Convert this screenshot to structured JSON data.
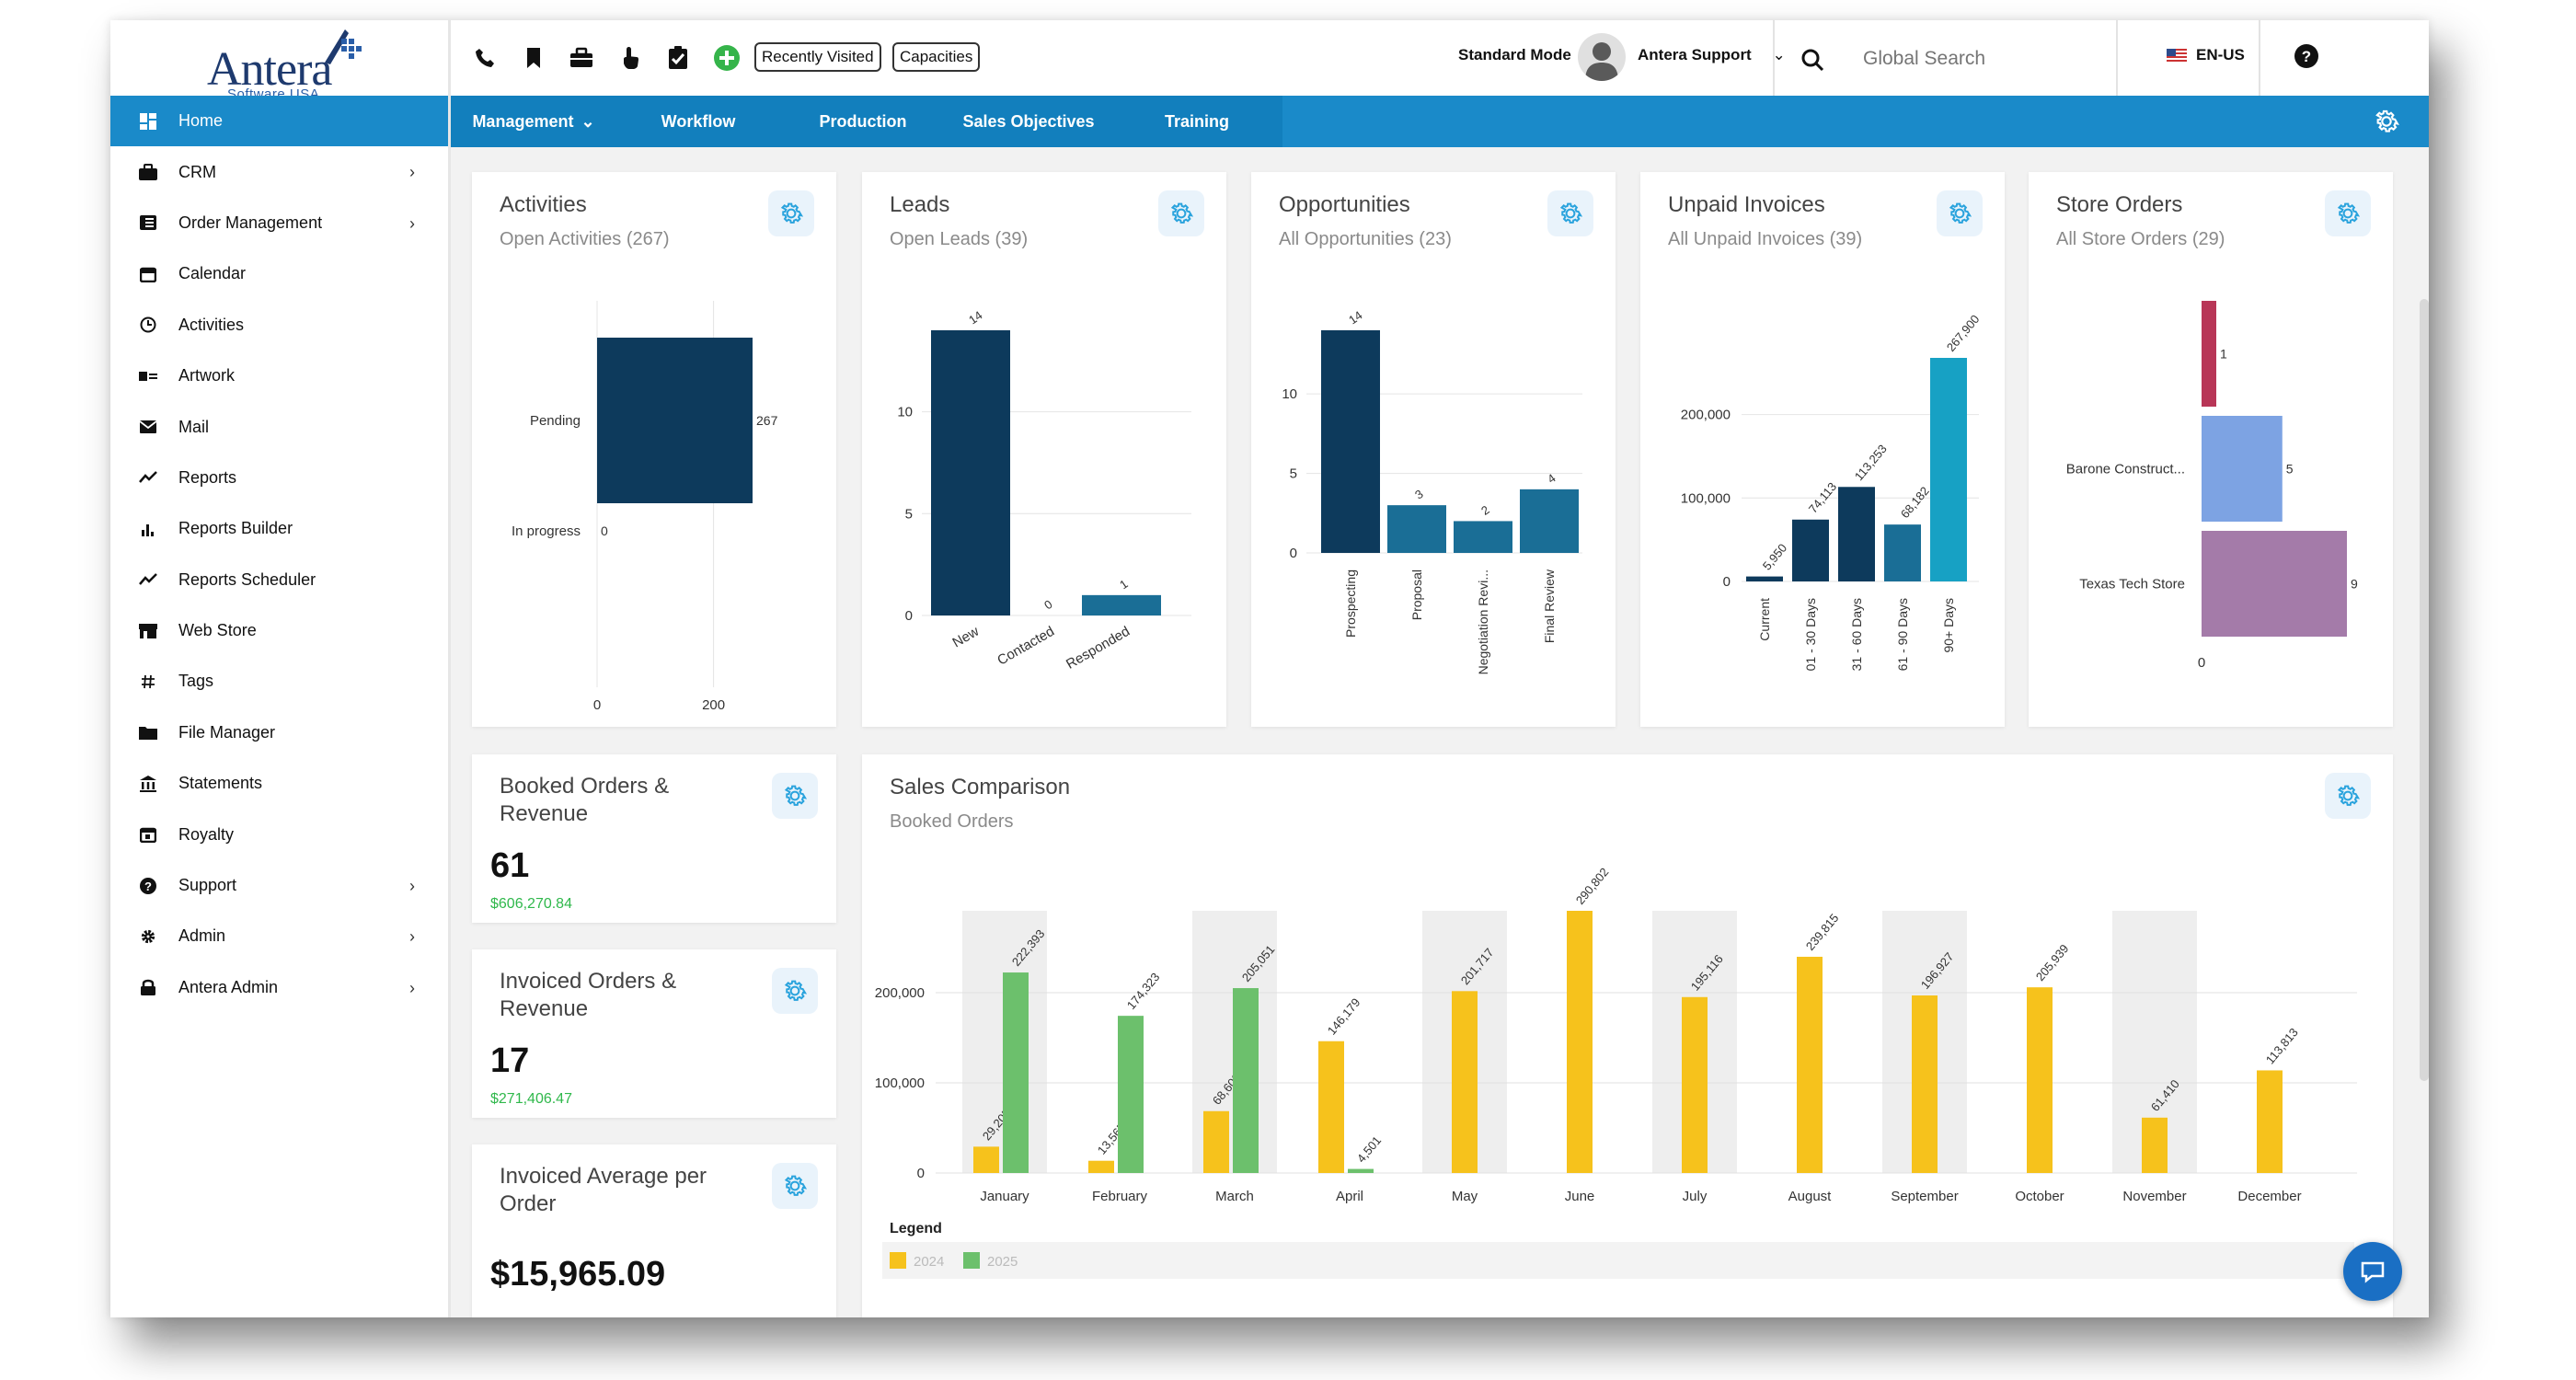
{
  "app": {
    "logo_text": "Antera",
    "logo_subtitle": "Software USA"
  },
  "sidebar": {
    "items": [
      {
        "label": "Home",
        "icon": "dashboard-icon",
        "active": true,
        "has_submenu": false
      },
      {
        "label": "CRM",
        "icon": "briefcase-icon",
        "active": false,
        "has_submenu": true
      },
      {
        "label": "Order Management",
        "icon": "list-icon",
        "active": false,
        "has_submenu": true
      },
      {
        "label": "Calendar",
        "icon": "calendar-icon",
        "active": false,
        "has_submenu": false
      },
      {
        "label": "Activities",
        "icon": "clock-icon",
        "active": false,
        "has_submenu": false
      },
      {
        "label": "Artwork",
        "icon": "artwork-icon",
        "active": false,
        "has_submenu": false
      },
      {
        "label": "Mail",
        "icon": "mail-icon",
        "active": false,
        "has_submenu": false
      },
      {
        "label": "Reports",
        "icon": "trend-icon",
        "active": false,
        "has_submenu": false
      },
      {
        "label": "Reports Builder",
        "icon": "bar-chart-icon",
        "active": false,
        "has_submenu": false
      },
      {
        "label": "Reports Scheduler",
        "icon": "trend-icon",
        "active": false,
        "has_submenu": false
      },
      {
        "label": "Web Store",
        "icon": "store-icon",
        "active": false,
        "has_submenu": false
      },
      {
        "label": "Tags",
        "icon": "hash-icon",
        "active": false,
        "has_submenu": false
      },
      {
        "label": "File Manager",
        "icon": "folder-icon",
        "active": false,
        "has_submenu": false
      },
      {
        "label": "Statements",
        "icon": "bank-icon",
        "active": false,
        "has_submenu": false
      },
      {
        "label": "Royalty",
        "icon": "calendar-check-icon",
        "active": false,
        "has_submenu": false
      },
      {
        "label": "Support",
        "icon": "question-icon",
        "active": false,
        "has_submenu": true
      },
      {
        "label": "Admin",
        "icon": "gear-icon",
        "active": false,
        "has_submenu": true
      },
      {
        "label": "Antera Admin",
        "icon": "lock-icon",
        "active": false,
        "has_submenu": true
      }
    ]
  },
  "topbar": {
    "recently_visited": "Recently Visited",
    "capacities": "Capacities",
    "mode": "Standard Mode",
    "user": "Antera Support",
    "search_placeholder": "Global Search",
    "language": "EN-US"
  },
  "navbar": {
    "tabs": [
      "Management",
      "Workflow",
      "Production",
      "Sales Objectives",
      "Training"
    ]
  },
  "colors": {
    "primary": "#1a8ac9",
    "navy": "#0d3a5c",
    "teal": "#1a6e96",
    "sky": "#17a1c4",
    "yellow": "#f6c21c",
    "green": "#6cc06c",
    "money": "#2fb84b",
    "crimson": "#b83657",
    "lavender": "#7da3e3",
    "purple": "#a47ba9"
  },
  "cards": {
    "activities": {
      "title": "Activities",
      "subtitle": "Open Activities (267)"
    },
    "leads": {
      "title": "Leads",
      "subtitle": "Open Leads (39)"
    },
    "opportunities": {
      "title": "Opportunities",
      "subtitle": "All Opportunities (23)"
    },
    "invoices": {
      "title": "Unpaid Invoices",
      "subtitle": "All Unpaid Invoices (39)"
    },
    "store": {
      "title": "Store Orders",
      "subtitle": "All Store Orders (29)"
    },
    "sales": {
      "title": "Sales Comparison",
      "subtitle": "Booked Orders"
    }
  },
  "kpis": {
    "booked": {
      "title": "Booked Orders & Revenue",
      "value": "61",
      "money": "$606,270.84"
    },
    "invoiced": {
      "title": "Invoiced Orders & Revenue",
      "value": "17",
      "money": "$271,406.47"
    },
    "average": {
      "title": "Invoiced Average per Order",
      "value": "$15,965.09"
    }
  },
  "chart_data": [
    {
      "id": "activities",
      "type": "bar",
      "orientation": "horizontal",
      "categories": [
        "Pending",
        "In progress"
      ],
      "values": [
        267,
        0
      ],
      "xlim": [
        0,
        267
      ],
      "xticks": [
        "0",
        "200"
      ]
    },
    {
      "id": "leads",
      "type": "bar",
      "categories": [
        "New",
        "Contacted",
        "Responded"
      ],
      "values": [
        14,
        0,
        1
      ],
      "ylim": [
        0,
        14
      ],
      "yticks": [
        "0",
        "5",
        "10"
      ]
    },
    {
      "id": "opportunities",
      "type": "bar",
      "categories": [
        "Prospecting",
        "Proposal",
        "Negotiation Revi...",
        "Final Review"
      ],
      "values": [
        14,
        3,
        2,
        4
      ],
      "ylim": [
        0,
        14
      ],
      "yticks": [
        "0",
        "5",
        "10"
      ]
    },
    {
      "id": "invoices",
      "type": "bar",
      "categories": [
        "Current",
        "01 - 30 Days",
        "31 - 60 Days",
        "61 - 90 Days",
        "90+ Days"
      ],
      "values": [
        5950,
        74113,
        113253,
        68182,
        267900
      ],
      "labels": [
        "5,950",
        "74,113",
        "113,253",
        "68,182",
        "267,900"
      ],
      "ylim": [
        0,
        267900
      ],
      "yticks": [
        "0",
        "100,000",
        "200,000"
      ]
    },
    {
      "id": "store",
      "type": "bar",
      "orientation": "horizontal",
      "categories": [
        "",
        "Barone Construct...",
        "Texas Tech Store"
      ],
      "values": [
        1,
        5,
        9
      ],
      "xlim": [
        0,
        9
      ],
      "xticks": [
        "0"
      ]
    },
    {
      "id": "sales",
      "type": "bar",
      "title": "Sales Comparison",
      "categories": [
        "January",
        "February",
        "March",
        "April",
        "May",
        "June",
        "July",
        "August",
        "September",
        "October",
        "November",
        "December"
      ],
      "series": [
        {
          "name": "2024",
          "values": [
            29205,
            13565,
            68609,
            146179,
            201717,
            290802,
            195116,
            239815,
            196927,
            205939,
            61410,
            113813
          ],
          "labels": [
            "29,205",
            "13,565",
            "68,609",
            "146,179",
            "201,717",
            "290,802",
            "195,116",
            "239,815",
            "196,927",
            "205,939",
            "61,410",
            "113,813"
          ]
        },
        {
          "name": "2025",
          "values": [
            222393,
            174323,
            205051,
            4501,
            null,
            null,
            null,
            null,
            null,
            null,
            null,
            null
          ],
          "labels": [
            "222,393",
            "174,323",
            "205,051",
            "4,501",
            "",
            "",
            "",
            "",
            "",
            "",
            "",
            ""
          ]
        }
      ],
      "ylim": [
        0,
        290802
      ],
      "yticks": [
        "0",
        "100,000",
        "200,000"
      ],
      "legend_title": "Legend"
    }
  ]
}
